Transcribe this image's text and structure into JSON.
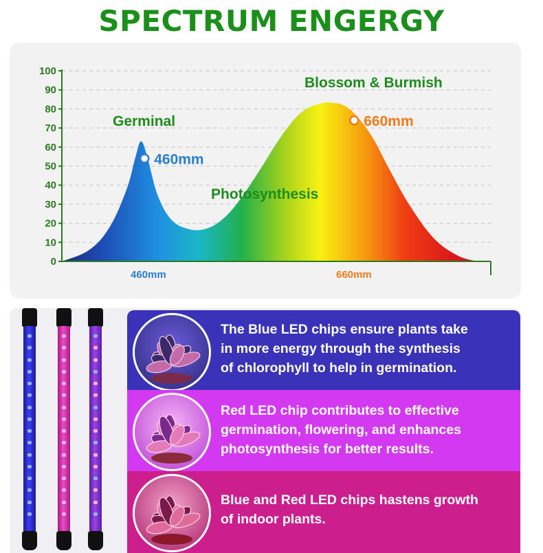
{
  "title": "SPECTRUM ENGERGY",
  "colors": {
    "title": "#1a8f1a",
    "blue_label": "#2a7fd0",
    "orange_label": "#f07a1a",
    "green_label": "#1d8c1d",
    "band_blue": "#3a32b8",
    "band_violet": "#d339f0",
    "band_magenta": "#cc1f8d"
  },
  "chart_data": {
    "type": "area",
    "ylim": [
      0,
      100
    ],
    "yticks": [
      "0",
      "10",
      "20",
      "30",
      "40",
      "50",
      "60",
      "70",
      "80",
      "90",
      "100"
    ],
    "grid": true,
    "x_labels": [
      "460mm",
      "660mm"
    ],
    "peaks": [
      {
        "label": "460mm",
        "value": 54
      },
      {
        "label": "660mm",
        "value": 74
      }
    ],
    "annotations": [
      "Germinal",
      "Blossom & Burmish",
      "Photosynthesis"
    ],
    "curve": {
      "x": [
        0,
        40,
        70,
        95,
        108,
        116,
        125,
        140,
        160,
        185,
        210,
        235,
        260,
        290,
        320,
        350,
        380,
        400,
        412,
        430,
        455,
        480,
        510,
        545,
        580,
        610,
        620
      ],
      "y": [
        0,
        6,
        18,
        38,
        55,
        63,
        55,
        35,
        22,
        17,
        17,
        22,
        32,
        48,
        65,
        78,
        83,
        83,
        82,
        77,
        65,
        48,
        29,
        12,
        3,
        0,
        0
      ]
    }
  },
  "info": [
    {
      "lines": [
        "The Blue LED chips ensure plants take",
        "in more energy through the synthesis",
        "of chlorophyll to help in germination."
      ]
    },
    {
      "lines": [
        "Red LED chip contributes to effective",
        "germination, flowering, and enhances",
        "photosynthesis for better results."
      ]
    },
    {
      "lines": [
        "Blue and Red LED chips hastens growth",
        "of indoor plants."
      ]
    }
  ]
}
